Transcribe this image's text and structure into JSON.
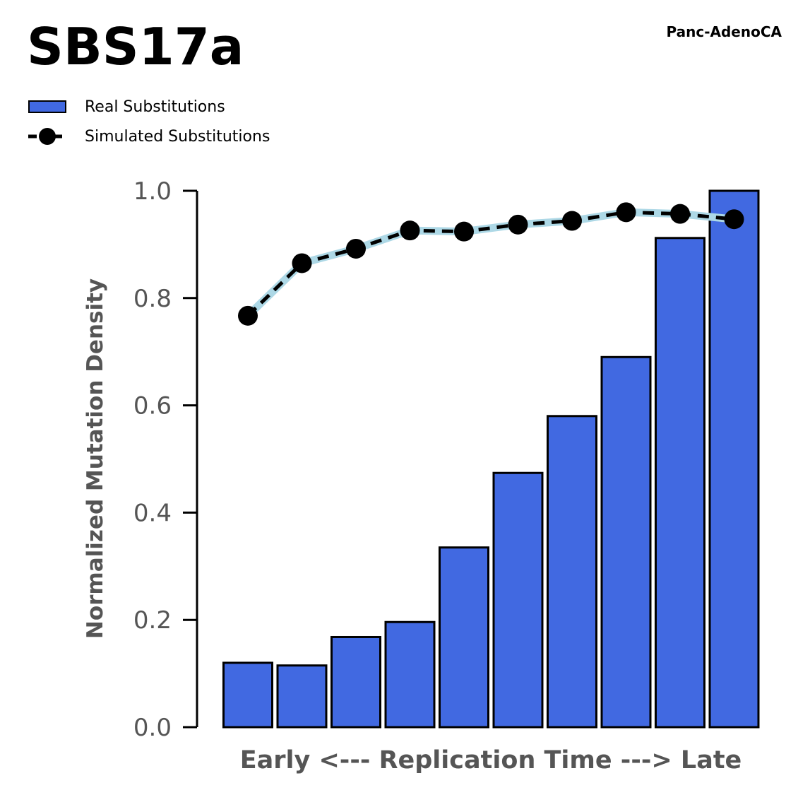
{
  "chart_data": {
    "type": "bar",
    "title": "SBS17a",
    "subtitle": "Panc-AdenoCA",
    "xlabel": "Early <--- Replication Time ---> Late",
    "ylabel": "Normalized Mutation Density",
    "ylim": [
      0,
      1.0
    ],
    "yticks": [
      "0.0",
      "0.2",
      "0.4",
      "0.6",
      "0.8",
      "1.0"
    ],
    "legend_position": "top-left",
    "grid": false,
    "series": [
      {
        "name": "Real Substitutions",
        "type": "bar",
        "color": "#4169e1",
        "values": [
          0.12,
          0.115,
          0.168,
          0.196,
          0.335,
          0.474,
          0.58,
          0.69,
          0.912,
          1.0
        ]
      },
      {
        "name": "Simulated Substitutions",
        "type": "line",
        "color": "#000000",
        "band_color": "#add8e6",
        "values": [
          0.767,
          0.865,
          0.892,
          0.926,
          0.924,
          0.937,
          0.944,
          0.96,
          0.957,
          0.947
        ]
      }
    ]
  }
}
